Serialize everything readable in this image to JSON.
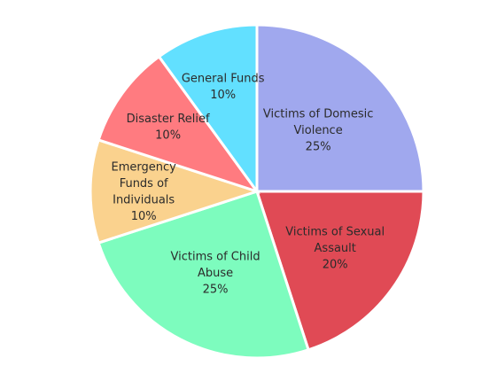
{
  "chart_data": {
    "type": "pie",
    "title": "",
    "slices": [
      {
        "label_lines": [
          "Victims of Domesic",
          "Violence"
        ],
        "percent_label": "25%",
        "value": 25,
        "color": "#a0a8ee"
      },
      {
        "label_lines": [
          "Victims of Sexual",
          "Assault"
        ],
        "percent_label": "20%",
        "value": 20,
        "color": "#e04a55"
      },
      {
        "label_lines": [
          "Victims of Child",
          "Abuse"
        ],
        "percent_label": "25%",
        "value": 25,
        "color": "#7dfcbe"
      },
      {
        "label_lines": [
          "Emergency",
          "Funds of",
          "Individuals"
        ],
        "percent_label": "10%",
        "value": 10,
        "color": "#fad28e"
      },
      {
        "label_lines": [
          "Disaster Relief"
        ],
        "percent_label": "10%",
        "value": 10,
        "color": "#ff7b80"
      },
      {
        "label_lines": [
          "General Funds"
        ],
        "percent_label": "10%",
        "value": 10,
        "color": "#62e0ff"
      }
    ]
  }
}
